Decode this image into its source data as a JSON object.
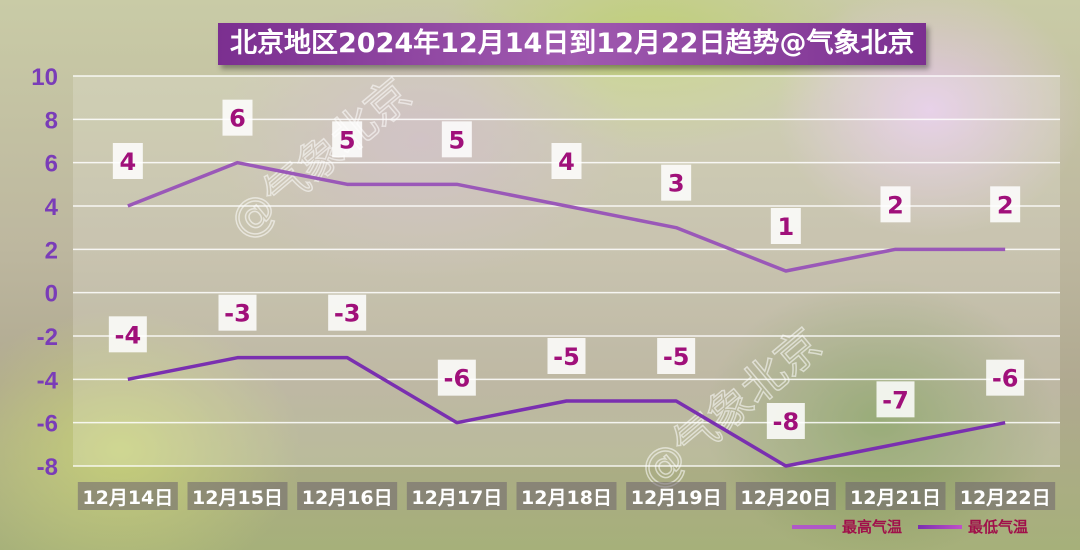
{
  "chart_data": {
    "type": "line",
    "title": "北京地区2024年12月14日到12月22日趋势@气象北京",
    "categories": [
      "12月14日",
      "12月15日",
      "12月16日",
      "12月17日",
      "12月18日",
      "12月19日",
      "12月20日",
      "12月21日",
      "12月22日"
    ],
    "series": [
      {
        "name": "最高气温",
        "values": [
          4,
          6,
          5,
          5,
          4,
          3,
          1,
          2,
          2
        ],
        "color": "#9a58b8"
      },
      {
        "name": "最低气温",
        "values": [
          -4,
          -3,
          -3,
          -6,
          -5,
          -5,
          -8,
          -7,
          -6
        ],
        "color": "#7a2fb0"
      }
    ],
    "ylim": [
      -8,
      10
    ],
    "yticks": [
      10,
      8,
      6,
      4,
      2,
      0,
      -2,
      -4,
      -6,
      -8
    ],
    "grid": true,
    "legend_position": "bottom-right",
    "watermark": "@气象北京",
    "colors": {
      "data_label": "#a0107a",
      "tick_label": "#7a3cb8",
      "legend_text": "#a0104a",
      "title_bg": "#7b2f90"
    }
  }
}
